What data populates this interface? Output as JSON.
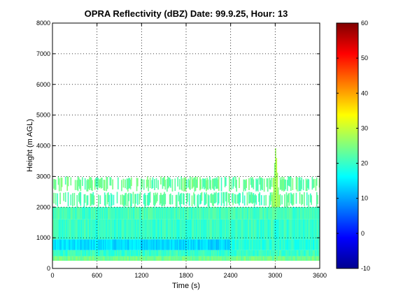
{
  "chart_data": {
    "type": "heatmap",
    "title": "OPRA Reflectivity (dBZ)  Date: 99.9.25, Hour: 13",
    "xlabel": "Time (s)",
    "ylabel": "Height (m AGL)",
    "xlim": [
      0,
      3600
    ],
    "ylim": [
      0,
      8000
    ],
    "xticks": [
      0,
      600,
      1200,
      1800,
      2400,
      3000,
      3600
    ],
    "yticks": [
      0,
      1000,
      2000,
      3000,
      4000,
      5000,
      6000,
      7000,
      8000
    ],
    "grid": true,
    "colorbar": {
      "range": [
        -10,
        60
      ],
      "ticks": [
        -10,
        0,
        10,
        20,
        30,
        40,
        50,
        60
      ],
      "colormap": "jet"
    },
    "layers": [
      {
        "height_range": [
          250,
          400
        ],
        "time_range": [
          0,
          3600
        ],
        "value": 24
      },
      {
        "height_range": [
          400,
          600
        ],
        "time_range": [
          0,
          3600
        ],
        "value": 20
      },
      {
        "height_range": [
          600,
          950
        ],
        "time_range": [
          0,
          2400
        ],
        "value": 14
      },
      {
        "height_range": [
          600,
          950
        ],
        "time_range": [
          2400,
          3600
        ],
        "value": 19
      },
      {
        "height_range": [
          950,
          1600
        ],
        "time_range": [
          0,
          3600
        ],
        "value": 20
      },
      {
        "height_range": [
          1600,
          2000
        ],
        "time_range": [
          0,
          3600
        ],
        "value": 21
      },
      {
        "height_range": [
          2000,
          2500
        ],
        "time_range": [
          0,
          3600
        ],
        "value": 22
      },
      {
        "height_range": [
          2500,
          3000
        ],
        "time_range": [
          0,
          3600
        ],
        "value": 23
      },
      {
        "height_range": [
          2000,
          4000
        ],
        "time_range": [
          2950,
          3050
        ],
        "value": 27
      }
    ]
  },
  "colors": {
    "axes_background": "#ffffff",
    "grid": "#000000"
  }
}
